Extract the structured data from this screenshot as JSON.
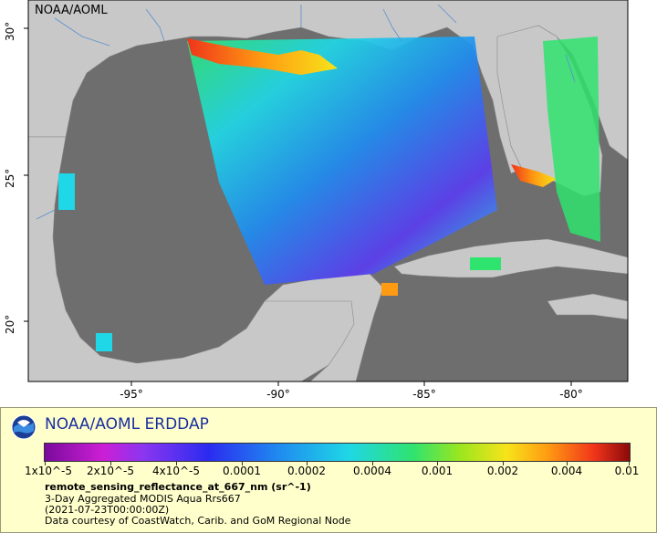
{
  "map": {
    "credit": "NOAA/AOML",
    "x_ticks": [
      "-95°",
      "-90°",
      "-85°",
      "-80°"
    ],
    "y_ticks": [
      "30°",
      "25°",
      "20°"
    ],
    "colors": {
      "ocean": "#6e6e6e",
      "land": "#c8c8c8",
      "rivers": "#5b8fcf",
      "borders": "#8a8a8a"
    }
  },
  "legend": {
    "title": "NOAA/AOML ERDDAP",
    "colorbar_labels": [
      "1x10^-5",
      "2x10^-5",
      "4x10^-5",
      "0.0001",
      "0.0002",
      "0.0004",
      "0.001",
      "0.002",
      "0.004",
      "0.01"
    ],
    "variable": "remote_sensing_reflectance_at_667_nm (sr^-1)",
    "dataset": "3-Day Aggregated MODIS Aqua Rrs667",
    "time": "(2021-07-23T00:00:00Z)",
    "credit": "Data courtesy of CoastWatch, Carib. and GoM Regional Node",
    "logo_icon": "noaa-logo-icon",
    "logo_colors": [
      "#1a3d96",
      "#3a8be0",
      "#ffffff"
    ]
  }
}
